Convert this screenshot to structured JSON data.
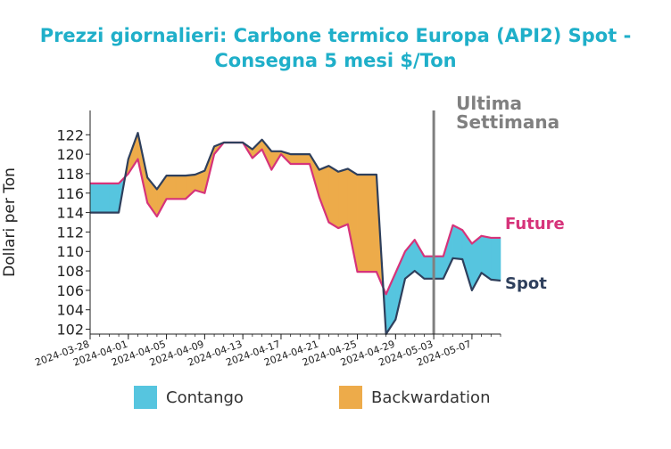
{
  "title_line1": "Prezzi giornalieri: Carbone termico Europa (API2) Spot -",
  "title_line2": "Consegna 5 mesi $/Ton",
  "chart_data": {
    "type": "area",
    "ylabel": "Dollari per Ton",
    "ylim": [
      101.5,
      124.5
    ],
    "yticks": [
      102,
      104,
      106,
      108,
      110,
      112,
      114,
      116,
      118,
      120,
      122
    ],
    "x_start": "2024-03-28",
    "x_end": "2024-05-10",
    "xticks": [
      "2024-03-28",
      "2024-04-01",
      "2024-04-05",
      "2024-04-09",
      "2024-04-13",
      "2024-04-17",
      "2024-04-21",
      "2024-04-25",
      "2024-04-29",
      "2024-05-03",
      "2024-05-07"
    ],
    "x": [
      "2024-03-28",
      "2024-03-29",
      "2024-03-30",
      "2024-03-31",
      "2024-04-01",
      "2024-04-02",
      "2024-04-03",
      "2024-04-04",
      "2024-04-05",
      "2024-04-06",
      "2024-04-07",
      "2024-04-08",
      "2024-04-09",
      "2024-04-10",
      "2024-04-11",
      "2024-04-12",
      "2024-04-13",
      "2024-04-14",
      "2024-04-15",
      "2024-04-16",
      "2024-04-17",
      "2024-04-18",
      "2024-04-19",
      "2024-04-20",
      "2024-04-21",
      "2024-04-22",
      "2024-04-23",
      "2024-04-24",
      "2024-04-25",
      "2024-04-26",
      "2024-04-27",
      "2024-04-28",
      "2024-04-29",
      "2024-04-30",
      "2024-05-01",
      "2024-05-02",
      "2024-05-03",
      "2024-05-04",
      "2024-05-05",
      "2024-05-06",
      "2024-05-07",
      "2024-05-08",
      "2024-05-09",
      "2024-05-10"
    ],
    "series": [
      {
        "name": "Spot",
        "color": "#2e3f5c",
        "values": [
          114.0,
          114.0,
          114.0,
          114.0,
          119.5,
          122.2,
          117.6,
          116.4,
          117.8,
          117.8,
          117.8,
          117.9,
          118.3,
          120.8,
          121.2,
          121.2,
          121.2,
          120.5,
          121.5,
          120.3,
          120.3,
          120.0,
          120.0,
          120.0,
          118.4,
          118.8,
          118.2,
          118.5,
          117.9,
          117.9,
          117.9,
          101.5,
          103.0,
          107.2,
          108.0,
          107.2,
          107.2,
          107.2,
          109.3,
          109.2,
          106.0,
          107.8,
          107.1,
          107.0
        ]
      },
      {
        "name": "Future",
        "color": "#d6337a",
        "values": [
          117.0,
          117.0,
          117.0,
          117.0,
          118.0,
          119.5,
          115.0,
          113.6,
          115.4,
          115.4,
          115.4,
          116.3,
          116.0,
          120.0,
          121.2,
          121.2,
          121.2,
          119.6,
          120.5,
          118.4,
          120.0,
          119.0,
          119.0,
          119.0,
          115.6,
          113.0,
          112.4,
          112.8,
          107.9,
          107.9,
          107.9,
          105.6,
          107.8,
          110.0,
          111.2,
          109.5,
          109.5,
          109.5,
          112.7,
          112.2,
          110.8,
          111.6,
          111.4,
          111.4
        ]
      }
    ],
    "vline": {
      "x": "2024-05-03",
      "label_line1": "Ultima",
      "label_line2": "Settimana",
      "color": "#808080"
    },
    "fills": {
      "contango_color": "#56c5df",
      "backwardation_color": "#edab4a"
    },
    "legend": {
      "placement": "bottom",
      "contango_label": "Contango",
      "backwardation_label": "Backwardation"
    }
  }
}
